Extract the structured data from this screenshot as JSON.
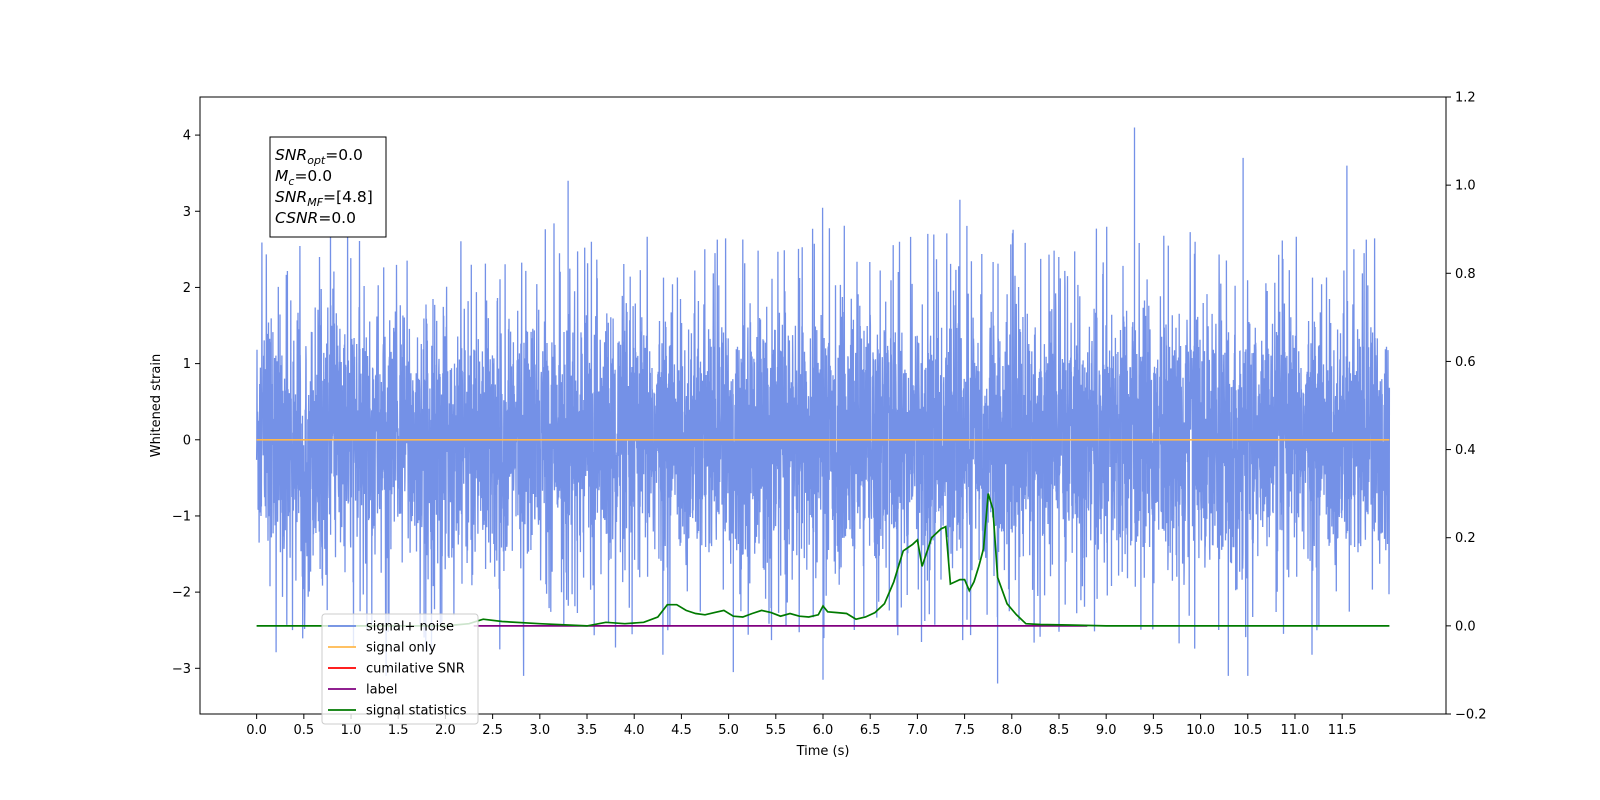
{
  "chart_data": {
    "type": "line",
    "xlabel": "Time (s)",
    "ylabel_left": "Whitened strain",
    "ylabel_right": "",
    "xlim": [
      -0.6,
      12.6
    ],
    "ylim_left": [
      -3.6,
      4.5
    ],
    "ylim_right": [
      -0.2,
      1.2
    ],
    "x_ticks": [
      0.0,
      0.5,
      1.0,
      1.5,
      2.0,
      2.5,
      3.0,
      3.5,
      4.0,
      4.5,
      5.0,
      5.5,
      6.0,
      6.5,
      7.0,
      7.5,
      8.0,
      8.5,
      9.0,
      9.5,
      10.0,
      10.5,
      11.0,
      11.5
    ],
    "x_tick_labels": [
      "0.0",
      "0.5",
      "1.0",
      "1.5",
      "2.0",
      "2.5",
      "3.0",
      "3.5",
      "4.0",
      "4.5",
      "5.0",
      "5.5",
      "6.0",
      "6.5",
      "7.0",
      "7.5",
      "8.0",
      "8.5",
      "9.0",
      "9.5",
      "10.0",
      "10.5",
      "11.0",
      "11.5"
    ],
    "y_ticks_left": [
      -3,
      -2,
      -1,
      0,
      1,
      2,
      3,
      4
    ],
    "y_tick_labels_left": [
      "−3",
      "−2",
      "−1",
      "0",
      "1",
      "2",
      "3",
      "4"
    ],
    "y_ticks_right": [
      -0.2,
      0.0,
      0.2,
      0.4,
      0.6,
      0.8,
      1.0,
      1.2
    ],
    "y_tick_labels_right": [
      "−0.2",
      "0.0",
      "0.2",
      "0.4",
      "0.6",
      "0.8",
      "1.0",
      "1.2"
    ],
    "grid": false,
    "legend_position": "lower-left",
    "series": [
      {
        "name": "signal+ noise",
        "axis": "left",
        "color": "#6d8be6",
        "style": "noise",
        "x_range": [
          0.0,
          12.0
        ],
        "approx_envelope": [
          -2.5,
          2.6
        ],
        "notable_peaks": [
          {
            "x": 9.3,
            "y": 4.1
          },
          {
            "x": 10.45,
            "y": 3.7
          },
          {
            "x": 11.55,
            "y": 3.6
          },
          {
            "x": 3.3,
            "y": 3.4
          },
          {
            "x": 7.45,
            "y": 3.15
          },
          {
            "x": 7.85,
            "y": -3.2
          },
          {
            "x": 6.0,
            "y": -3.15
          },
          {
            "x": 5.05,
            "y": -3.05
          },
          {
            "x": 10.5,
            "y": -3.1
          }
        ]
      },
      {
        "name": "signal only",
        "axis": "left",
        "color": "#ffb84d",
        "x": [
          0.0,
          12.0
        ],
        "y": [
          0.0,
          0.0
        ]
      },
      {
        "name": "cumilative SNR",
        "axis": "right",
        "color": "#ff0000",
        "x": [],
        "y": []
      },
      {
        "name": "label",
        "axis": "right",
        "color": "#800080",
        "x": [
          2.3,
          8.8
        ],
        "y": [
          0.0,
          0.0
        ]
      },
      {
        "name": "signal statistics",
        "axis": "right",
        "color": "#007a00",
        "x": [
          0.0,
          2.0,
          2.25,
          2.4,
          2.6,
          3.0,
          3.5,
          3.7,
          3.9,
          4.1,
          4.25,
          4.35,
          4.45,
          4.55,
          4.65,
          4.75,
          4.85,
          4.95,
          5.05,
          5.15,
          5.25,
          5.35,
          5.45,
          5.55,
          5.65,
          5.75,
          5.85,
          5.95,
          6.0,
          6.05,
          6.15,
          6.25,
          6.35,
          6.45,
          6.55,
          6.65,
          6.75,
          6.85,
          6.95,
          7.0,
          7.05,
          7.15,
          7.25,
          7.3,
          7.35,
          7.45,
          7.5,
          7.55,
          7.6,
          7.65,
          7.7,
          7.75,
          7.8,
          7.85,
          7.95,
          8.05,
          8.15,
          8.3,
          8.6,
          9.0,
          12.0
        ],
        "y": [
          0.0,
          0.0,
          0.005,
          0.015,
          0.01,
          0.005,
          0.0,
          0.008,
          0.005,
          0.008,
          0.02,
          0.048,
          0.048,
          0.035,
          0.028,
          0.025,
          0.03,
          0.035,
          0.022,
          0.02,
          0.028,
          0.035,
          0.03,
          0.022,
          0.028,
          0.022,
          0.02,
          0.025,
          0.045,
          0.032,
          0.03,
          0.028,
          0.015,
          0.02,
          0.03,
          0.05,
          0.1,
          0.17,
          0.185,
          0.195,
          0.135,
          0.2,
          0.22,
          0.225,
          0.095,
          0.105,
          0.105,
          0.08,
          0.1,
          0.135,
          0.175,
          0.3,
          0.265,
          0.11,
          0.05,
          0.025,
          0.005,
          0.003,
          0.002,
          0.0,
          0.0
        ]
      }
    ],
    "annotation_lines": [
      {
        "base": "SNR",
        "sub": "opt",
        "rest": "=0.0"
      },
      {
        "base": "M",
        "sub": "c",
        "rest": "=0.0"
      },
      {
        "base": "SNR",
        "sub": "MF",
        "rest": "=[4.8]"
      },
      {
        "base": "CSNR",
        "sub": "",
        "rest": "=0.0"
      }
    ]
  }
}
